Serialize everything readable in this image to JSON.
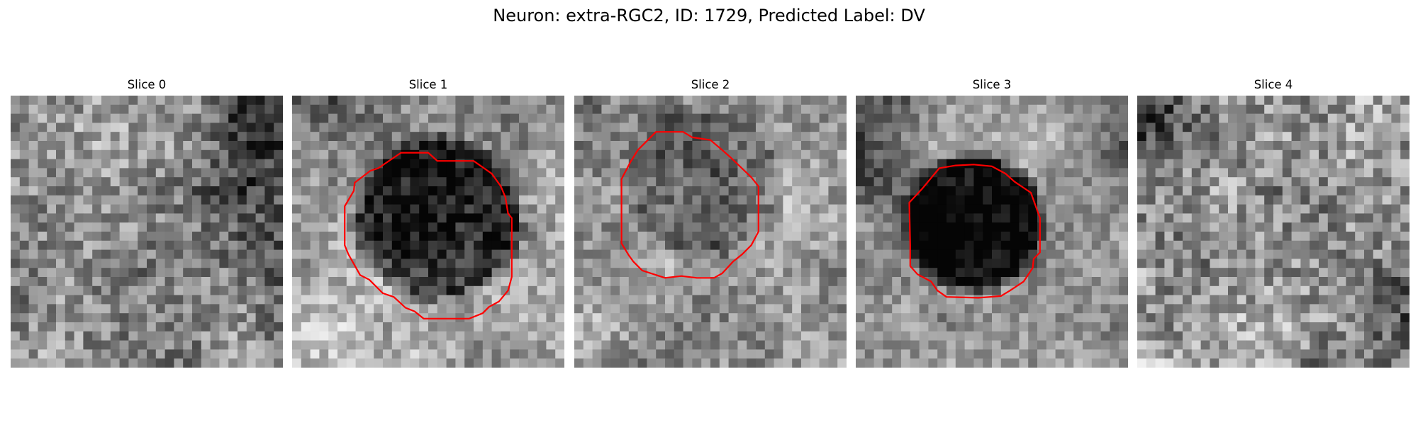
{
  "figure": {
    "title": "Neuron: extra-RGC2, ID: 1729, Predicted Label: DV"
  },
  "panels": [
    {
      "title": "Slice 0",
      "has_outline": false,
      "seed": 11
    },
    {
      "title": "Slice 1",
      "has_outline": true,
      "seed": 23
    },
    {
      "title": "Slice 2",
      "has_outline": true,
      "seed": 37
    },
    {
      "title": "Slice 3",
      "has_outline": true,
      "seed": 51
    },
    {
      "title": "Slice 4",
      "has_outline": false,
      "seed": 67
    }
  ],
  "style": {
    "outline_color": "#ff0000",
    "colormap": "grayscale"
  }
}
